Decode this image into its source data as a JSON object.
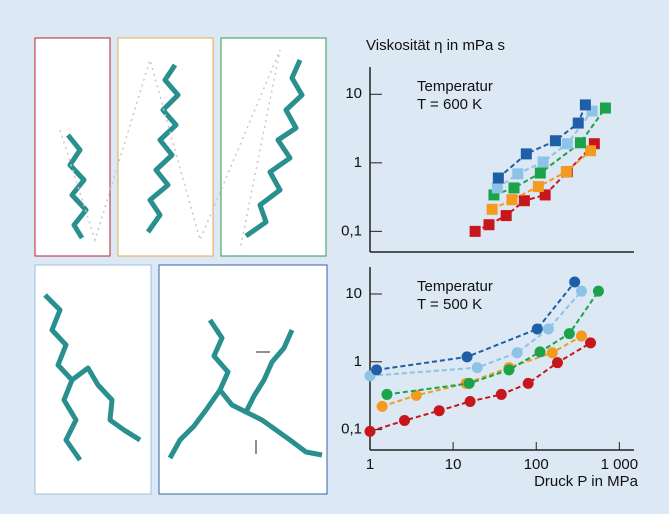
{
  "chart_data": [
    {
      "type": "line",
      "marker": "square",
      "xscale": "log",
      "yscale": "log",
      "ylabel": "Viskosität η in mPa s",
      "annotations": [
        "Temperatur",
        "T = 600 K"
      ],
      "xlim": [
        1,
        1500
      ],
      "ylim": [
        0.05,
        25
      ],
      "yticks": [
        {
          "value": 0.1,
          "label": "0,1"
        },
        1,
        10
      ],
      "series": [
        {
          "color": "#c8161d",
          "x": [
            18.4,
            27,
            43.5,
            72,
            128,
            236,
            500
          ],
          "values": [
            0.1,
            0.125,
            0.17,
            0.28,
            0.34,
            0.74,
            1.9
          ]
        },
        {
          "color": "#f39a1f",
          "x": [
            29.5,
            51,
            106,
            230,
            450
          ],
          "values": [
            0.21,
            0.29,
            0.45,
            0.74,
            1.5
          ]
        },
        {
          "color": "#1ba34a",
          "x": [
            31,
            54,
            112,
            340,
            680
          ],
          "values": [
            0.34,
            0.43,
            0.71,
            1.96,
            6.3
          ]
        },
        {
          "color": "#8ec3e8",
          "x": [
            34,
            60,
            121,
            236,
            470
          ],
          "values": [
            0.43,
            0.69,
            1.03,
            1.9,
            5.7
          ]
        },
        {
          "color": "#1f5fa8",
          "x": [
            35,
            76,
            170,
            320,
            390
          ],
          "values": [
            0.6,
            1.35,
            2.1,
            3.8,
            7.0
          ]
        }
      ]
    },
    {
      "type": "line",
      "marker": "circle",
      "xscale": "log",
      "yscale": "log",
      "xlabel": "Druck P in MPa",
      "annotations": [
        "Temperatur",
        "T = 500 K"
      ],
      "xlim": [
        1,
        1500
      ],
      "ylim": [
        0.05,
        25
      ],
      "xticks": [
        1,
        10,
        100,
        {
          "value": 1000,
          "label": "1 000"
        }
      ],
      "yticks": [
        {
          "value": 0.1,
          "label": "0,1"
        },
        1,
        10
      ],
      "series": [
        {
          "color": "#c8161d",
          "x": [
            1,
            2.6,
            6.8,
            16,
            38,
            80,
            180,
            450
          ],
          "values": [
            0.094,
            0.136,
            0.19,
            0.26,
            0.33,
            0.48,
            0.97,
            1.9
          ]
        },
        {
          "color": "#f39a1f",
          "x": [
            1.4,
            3.6,
            14.3,
            47,
            156,
            350
          ],
          "values": [
            0.22,
            0.32,
            0.48,
            0.82,
            1.36,
            2.4
          ]
        },
        {
          "color": "#1ba34a",
          "x": [
            1.6,
            15.6,
            47,
            111,
            250,
            560
          ],
          "values": [
            0.33,
            0.48,
            0.76,
            1.4,
            2.6,
            11
          ]
        },
        {
          "color": "#8ec3e8",
          "x": [
            1,
            19.5,
            59,
            140,
            350
          ],
          "values": [
            0.62,
            0.82,
            1.36,
            3.05,
            11
          ]
        },
        {
          "color": "#1f5fa8",
          "x": [
            1.2,
            14.7,
            103,
            290
          ],
          "values": [
            0.76,
            1.18,
            3.05,
            15
          ]
        }
      ]
    }
  ]
}
